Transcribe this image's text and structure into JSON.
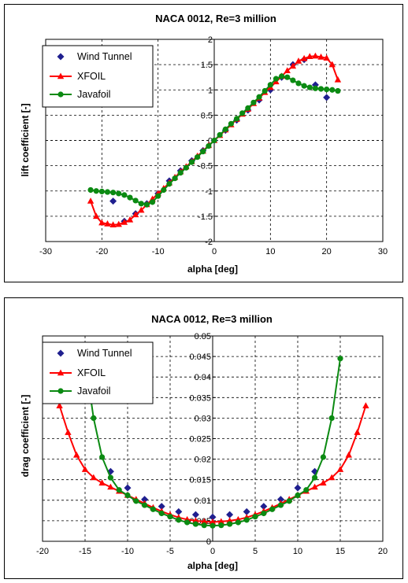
{
  "chart_data": [
    {
      "type": "line",
      "title": "NACA 0012, Re=3 million",
      "xlabel": "alpha [deg]",
      "ylabel": "lift coefficient [-]",
      "xlim": [
        -30,
        30
      ],
      "ylim": [
        -2,
        2
      ],
      "x_ticks": [
        "-30",
        "-20",
        "-10",
        "0",
        "10",
        "20",
        "30"
      ],
      "y_ticks": [
        "2",
        "1.5",
        "1",
        "0.5",
        "0",
        "-0.5",
        "-1",
        "-1.5",
        "-2"
      ],
      "grid": true,
      "legend_position": "top-left",
      "series": [
        {
          "name": "Wind Tunnel",
          "color": "#1f1f8f",
          "marker": "diamond",
          "points": [
            [
              -18,
              -1.2
            ],
            [
              -16,
              -1.6
            ],
            [
              -14,
              -1.45
            ],
            [
              -12,
              -1.25
            ],
            [
              -10,
              -1.05
            ],
            [
              -8,
              -0.8
            ],
            [
              -6,
              -0.6
            ],
            [
              -4,
              -0.4
            ],
            [
              -2,
              -0.2
            ],
            [
              0,
              0
            ],
            [
              2,
              0.2
            ],
            [
              4,
              0.4
            ],
            [
              6,
              0.6
            ],
            [
              8,
              0.8
            ],
            [
              10,
              1.0
            ],
            [
              12,
              1.25
            ],
            [
              14,
              1.5
            ],
            [
              16,
              1.6
            ],
            [
              18,
              1.1
            ],
            [
              20,
              0.85
            ]
          ]
        },
        {
          "name": "XFOIL",
          "color": "#ff0000",
          "marker": "triangle",
          "points": [
            [
              -22,
              -1.2
            ],
            [
              -21,
              -1.5
            ],
            [
              -20,
              -1.63
            ],
            [
              -19,
              -1.65
            ],
            [
              -18,
              -1.67
            ],
            [
              -17,
              -1.66
            ],
            [
              -16,
              -1.62
            ],
            [
              -15,
              -1.57
            ],
            [
              -14,
              -1.47
            ],
            [
              -13,
              -1.38
            ],
            [
              -12,
              -1.27
            ],
            [
              -11,
              -1.16
            ],
            [
              -10,
              -1.05
            ],
            [
              -9,
              -0.95
            ],
            [
              -8,
              -0.84
            ],
            [
              -7,
              -0.73
            ],
            [
              -6,
              -0.62
            ],
            [
              -5,
              -0.52
            ],
            [
              -4,
              -0.42
            ],
            [
              -3,
              -0.31
            ],
            [
              -2,
              -0.21
            ],
            [
              -1,
              -0.1
            ],
            [
              0,
              0
            ],
            [
              1,
              0.1
            ],
            [
              2,
              0.21
            ],
            [
              3,
              0.31
            ],
            [
              4,
              0.42
            ],
            [
              5,
              0.52
            ],
            [
              6,
              0.62
            ],
            [
              7,
              0.73
            ],
            [
              8,
              0.84
            ],
            [
              9,
              0.95
            ],
            [
              10,
              1.05
            ],
            [
              11,
              1.16
            ],
            [
              12,
              1.27
            ],
            [
              13,
              1.38
            ],
            [
              14,
              1.47
            ],
            [
              15,
              1.57
            ],
            [
              16,
              1.62
            ],
            [
              17,
              1.66
            ],
            [
              18,
              1.67
            ],
            [
              19,
              1.65
            ],
            [
              20,
              1.63
            ],
            [
              21,
              1.5
            ],
            [
              22,
              1.2
            ]
          ]
        },
        {
          "name": "Javafoil",
          "color": "#0b8a12",
          "marker": "circle",
          "points": [
            [
              -22,
              -0.98
            ],
            [
              -21,
              -1.0
            ],
            [
              -20,
              -1.01
            ],
            [
              -19,
              -1.02
            ],
            [
              -18,
              -1.03
            ],
            [
              -17,
              -1.05
            ],
            [
              -16,
              -1.08
            ],
            [
              -15,
              -1.13
            ],
            [
              -14,
              -1.19
            ],
            [
              -13,
              -1.25
            ],
            [
              -12,
              -1.27
            ],
            [
              -11,
              -1.22
            ],
            [
              -10,
              -1.1
            ],
            [
              -9,
              -0.98
            ],
            [
              -8,
              -0.86
            ],
            [
              -7,
              -0.75
            ],
            [
              -6,
              -0.64
            ],
            [
              -5,
              -0.54
            ],
            [
              -4,
              -0.43
            ],
            [
              -3,
              -0.33
            ],
            [
              -2,
              -0.22
            ],
            [
              -1,
              -0.11
            ],
            [
              0,
              0
            ],
            [
              1,
              0.11
            ],
            [
              2,
              0.22
            ],
            [
              3,
              0.33
            ],
            [
              4,
              0.43
            ],
            [
              5,
              0.54
            ],
            [
              6,
              0.64
            ],
            [
              7,
              0.75
            ],
            [
              8,
              0.86
            ],
            [
              9,
              0.98
            ],
            [
              10,
              1.1
            ],
            [
              11,
              1.22
            ],
            [
              12,
              1.27
            ],
            [
              13,
              1.25
            ],
            [
              14,
              1.19
            ],
            [
              15,
              1.13
            ],
            [
              16,
              1.08
            ],
            [
              17,
              1.05
            ],
            [
              18,
              1.03
            ],
            [
              19,
              1.02
            ],
            [
              20,
              1.01
            ],
            [
              21,
              1.0
            ],
            [
              22,
              0.98
            ]
          ]
        }
      ]
    },
    {
      "type": "line",
      "title": "NACA 0012, Re=3 million",
      "xlabel": "alpha [deg]",
      "ylabel": "drag coefficient [-]",
      "xlim": [
        -20,
        20
      ],
      "ylim": [
        0,
        0.05
      ],
      "x_ticks": [
        "-20",
        "-15",
        "-10",
        "-5",
        "0",
        "5",
        "10",
        "15",
        "20"
      ],
      "y_ticks": [
        "0.05",
        "0.045",
        "0.04",
        "0.035",
        "0.03",
        "0.025",
        "0.02",
        "0.015",
        "0.01",
        "0.005",
        "0"
      ],
      "grid": true,
      "legend_position": "top-left",
      "series": [
        {
          "name": "Wind Tunnel",
          "color": "#1f1f8f",
          "marker": "diamond",
          "points": [
            [
              -12,
              0.017
            ],
            [
              -10,
              0.013
            ],
            [
              -8,
              0.0102
            ],
            [
              -6,
              0.0085
            ],
            [
              -4,
              0.0072
            ],
            [
              -2,
              0.0065
            ],
            [
              0,
              0.0059
            ],
            [
              2,
              0.0065
            ],
            [
              4,
              0.0072
            ],
            [
              6,
              0.0085
            ],
            [
              8,
              0.0102
            ],
            [
              10,
              0.013
            ],
            [
              12,
              0.017
            ]
          ]
        },
        {
          "name": "XFOIL",
          "color": "#ff0000",
          "marker": "triangle",
          "points": [
            [
              -18,
              0.033
            ],
            [
              -17,
              0.0265
            ],
            [
              -16,
              0.021
            ],
            [
              -15,
              0.0175
            ],
            [
              -14,
              0.0155
            ],
            [
              -13,
              0.0142
            ],
            [
              -12,
              0.0132
            ],
            [
              -11,
              0.0122
            ],
            [
              -10,
              0.0112
            ],
            [
              -9,
              0.0102
            ],
            [
              -8,
              0.0092
            ],
            [
              -7,
              0.0082
            ],
            [
              -6,
              0.0073
            ],
            [
              -5,
              0.0065
            ],
            [
              -4,
              0.0058
            ],
            [
              -3,
              0.0053
            ],
            [
              -2,
              0.005
            ],
            [
              -1,
              0.0048
            ],
            [
              0,
              0.0047
            ],
            [
              1,
              0.0048
            ],
            [
              2,
              0.005
            ],
            [
              3,
              0.0053
            ],
            [
              4,
              0.0058
            ],
            [
              5,
              0.0065
            ],
            [
              6,
              0.0073
            ],
            [
              7,
              0.0082
            ],
            [
              8,
              0.0092
            ],
            [
              9,
              0.0102
            ],
            [
              10,
              0.0112
            ],
            [
              11,
              0.0122
            ],
            [
              12,
              0.0132
            ],
            [
              13,
              0.0142
            ],
            [
              14,
              0.0155
            ],
            [
              15,
              0.0175
            ],
            [
              16,
              0.021
            ],
            [
              17,
              0.0265
            ],
            [
              18,
              0.033
            ]
          ]
        },
        {
          "name": "Javafoil",
          "color": "#0b8a12",
          "marker": "circle",
          "points": [
            [
              -15,
              0.0445
            ],
            [
              -14,
              0.03
            ],
            [
              -13,
              0.0205
            ],
            [
              -12,
              0.0155
            ],
            [
              -11,
              0.0125
            ],
            [
              -10,
              0.0112
            ],
            [
              -9,
              0.0098
            ],
            [
              -8,
              0.0088
            ],
            [
              -7,
              0.0078
            ],
            [
              -6,
              0.0068
            ],
            [
              -5,
              0.006
            ],
            [
              -4,
              0.0052
            ],
            [
              -3,
              0.0046
            ],
            [
              -2,
              0.0042
            ],
            [
              -1,
              0.0039
            ],
            [
              0,
              0.0038
            ],
            [
              1,
              0.0039
            ],
            [
              2,
              0.0042
            ],
            [
              3,
              0.0046
            ],
            [
              4,
              0.0052
            ],
            [
              5,
              0.006
            ],
            [
              6,
              0.0068
            ],
            [
              7,
              0.0078
            ],
            [
              8,
              0.0088
            ],
            [
              9,
              0.0098
            ],
            [
              10,
              0.0112
            ],
            [
              11,
              0.0125
            ],
            [
              12,
              0.0155
            ],
            [
              13,
              0.0205
            ],
            [
              14,
              0.03
            ],
            [
              15,
              0.0445
            ]
          ]
        }
      ]
    }
  ]
}
